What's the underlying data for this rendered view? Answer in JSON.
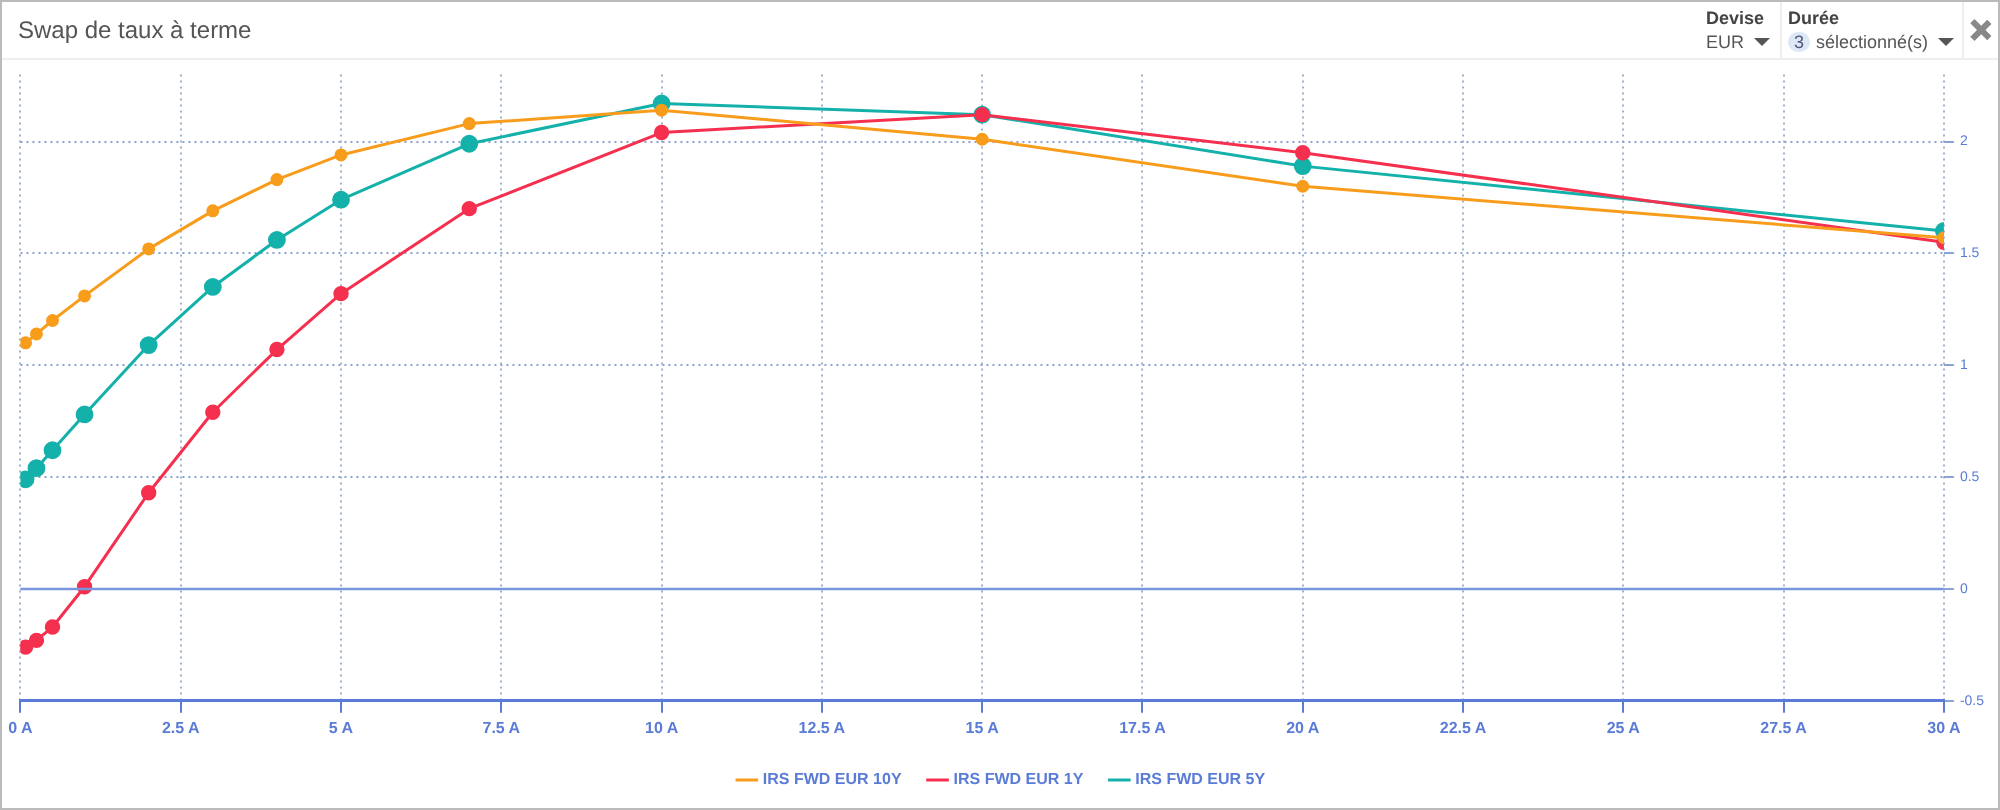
{
  "chart_data": {
    "type": "line",
    "title": "Swap de taux à terme",
    "annotations": [
      "Devise",
      "EUR",
      "Durée",
      "3",
      "sélectionné(s)"
    ],
    "x": [
      0.08,
      0.25,
      0.5,
      1,
      2,
      3,
      4,
      5,
      7,
      10,
      15,
      20,
      30
    ],
    "series": [
      {
        "name": "IRS FWD EUR 10Y",
        "color": "#f89c1c",
        "values": [
          1.1,
          1.14,
          1.2,
          1.31,
          1.52,
          1.69,
          1.83,
          1.94,
          2.08,
          2.14,
          2.01,
          1.8,
          1.57
        ]
      },
      {
        "name": "IRS FWD EUR 1Y",
        "color": "#f5304f",
        "values": [
          -0.26,
          -0.23,
          -0.17,
          0.01,
          0.43,
          0.79,
          1.07,
          1.32,
          1.7,
          2.04,
          2.12,
          1.95,
          1.55
        ]
      },
      {
        "name": "IRS FWD EUR 5Y",
        "color": "#14b1aa",
        "values": [
          0.49,
          0.54,
          0.62,
          0.78,
          1.09,
          1.35,
          1.56,
          1.74,
          1.99,
          2.17,
          2.12,
          1.89,
          1.6
        ]
      }
    ],
    "xlim": [
      0,
      30
    ],
    "xticks": [
      {
        "value": 0,
        "label": "0 A"
      },
      {
        "value": 2.5,
        "label": "2.5 A"
      },
      {
        "value": 5,
        "label": "5 A"
      },
      {
        "value": 7.5,
        "label": "7.5 A"
      },
      {
        "value": 10,
        "label": "10 A"
      },
      {
        "value": 12.5,
        "label": "12.5 A"
      },
      {
        "value": 15,
        "label": "15 A"
      },
      {
        "value": 17.5,
        "label": "17.5 A"
      },
      {
        "value": 20,
        "label": "20 A"
      },
      {
        "value": 22.5,
        "label": "22.5 A"
      },
      {
        "value": 25,
        "label": "25 A"
      },
      {
        "value": 27.5,
        "label": "27.5 A"
      },
      {
        "value": 30,
        "label": "30 A"
      }
    ],
    "ylim": [
      -0.5,
      2.3
    ],
    "yticks": [
      -0.5,
      0,
      0.5,
      1,
      1.5,
      2
    ],
    "ref_lines": [
      {
        "axis": "y",
        "value": 0,
        "color": "#7a97de",
        "line_style": "solid"
      }
    ],
    "grid": true,
    "legend": "bottom",
    "marker": "circle",
    "line_style": "solid"
  }
}
